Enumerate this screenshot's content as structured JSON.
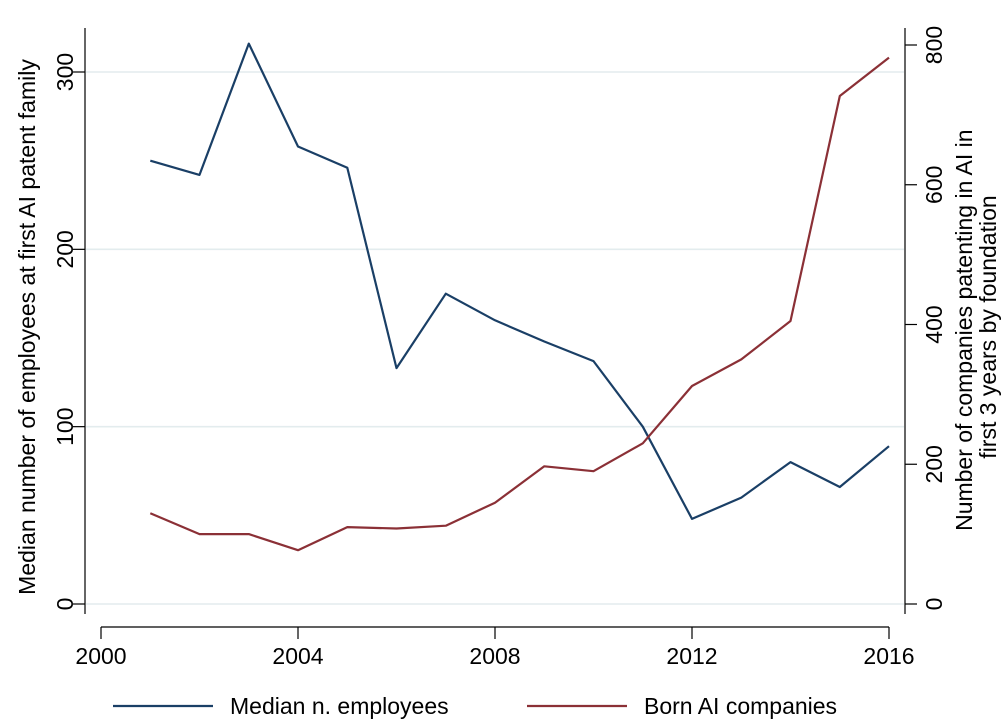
{
  "chart_data": {
    "type": "line",
    "title": "",
    "xlabel": "",
    "ylabel": "Median number of employees at first AI patent family",
    "y2label_lines": [
      "Number of companies patenting in AI in",
      "first 3 years by foundation"
    ],
    "xlim": [
      2000,
      2016
    ],
    "ylim": [
      0,
      300
    ],
    "y2lim": [
      0,
      800
    ],
    "xticks": [
      2000,
      2004,
      2008,
      2012,
      2016
    ],
    "yticks": [
      0,
      100,
      200,
      300
    ],
    "y2ticks": [
      0,
      200,
      400,
      600,
      800
    ],
    "grid": true,
    "legend_position": "bottom",
    "x": [
      2001,
      2002,
      2003,
      2004,
      2005,
      2006,
      2007,
      2008,
      2009,
      2010,
      2011,
      2012,
      2013,
      2014,
      2015,
      2016
    ],
    "series": [
      {
        "name": "Median n. employees",
        "axis": "left",
        "color": "#1a3f66",
        "values": [
          250,
          242,
          316,
          258,
          246,
          133,
          175,
          160,
          148,
          137,
          100,
          48,
          60,
          80,
          66,
          89
        ]
      },
      {
        "name": "Born AI companies",
        "axis": "right",
        "color": "#8b3036",
        "values": [
          130,
          100,
          100,
          77,
          110,
          108,
          112,
          145,
          197,
          190,
          230,
          312,
          350,
          405,
          727,
          782
        ]
      }
    ]
  }
}
